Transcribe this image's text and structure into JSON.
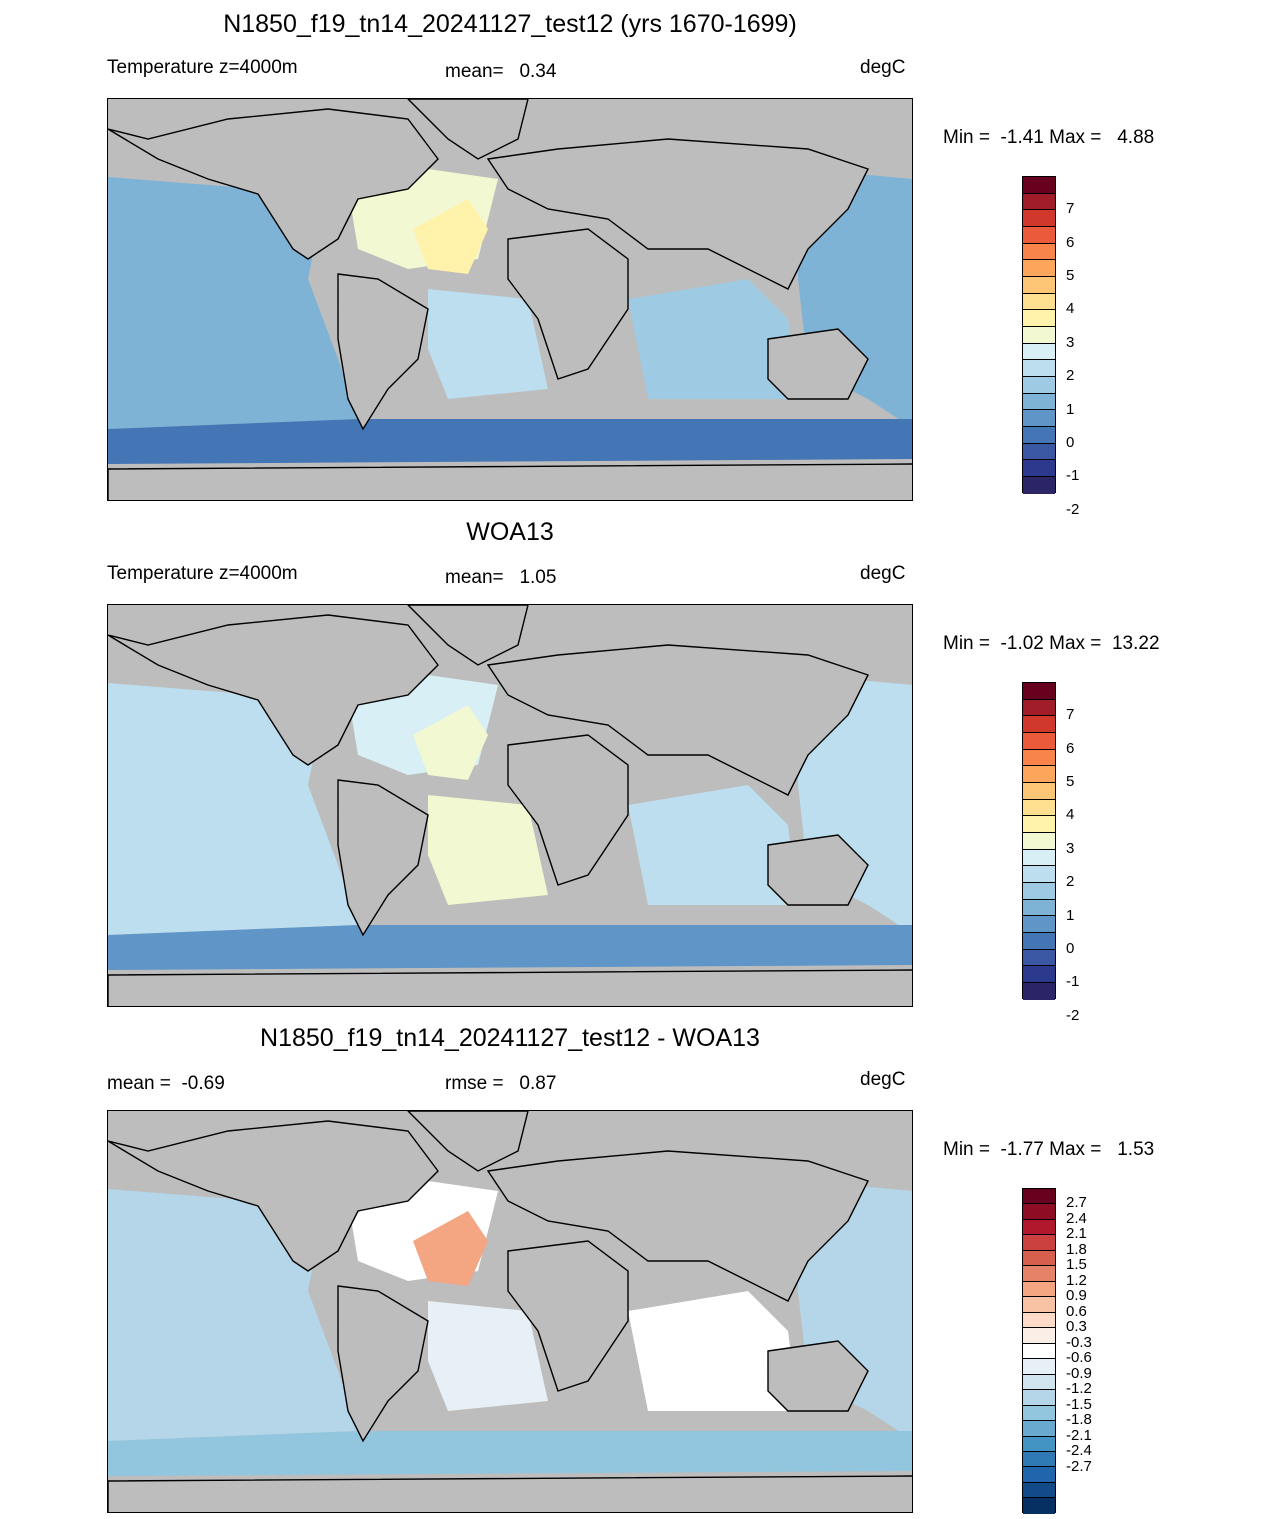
{
  "panels": [
    {
      "title": "N1850_f19_tn14_20241127_test12 (yrs 1670-1699)",
      "left_label": "Temperature z=4000m",
      "center_label": "mean=   0.34",
      "units": "degC",
      "minmax": "Min =  -1.41 Max =   4.88",
      "colorbar_ticks": [
        "7",
        "6",
        "5",
        "4",
        "3",
        "2",
        "1",
        "0",
        "-1",
        "-2"
      ],
      "colors": [
        "#67001f",
        "#a01c28",
        "#d1382c",
        "#ec5a3c",
        "#f8844c",
        "#fca65c",
        "#fdc676",
        "#fee090",
        "#fff3ab",
        "#f2f8d2",
        "#d8eff6",
        "#bcdeee",
        "#9ecbe3",
        "#7eb3d6",
        "#5f95c7",
        "#4475b4",
        "#3a57a4",
        "#2b3a8c",
        "#2b2566"
      ],
      "fills": {
        "pacific": "#7eb3d6",
        "atlantic": "#f2f8d2",
        "south": "#4475b4",
        "indian": "#9ecbe3",
        "south_atl": "#bcdeee",
        "north_atl_hot": "#fff3ab"
      }
    },
    {
      "title": "WOA13",
      "left_label": "Temperature z=4000m",
      "center_label": "mean=   1.05",
      "units": "degC",
      "minmax": "Min =  -1.02 Max =  13.22",
      "colorbar_ticks": [
        "7",
        "6",
        "5",
        "4",
        "3",
        "2",
        "1",
        "0",
        "-1",
        "-2"
      ],
      "colors": [
        "#67001f",
        "#a01c28",
        "#d1382c",
        "#ec5a3c",
        "#f8844c",
        "#fca65c",
        "#fdc676",
        "#fee090",
        "#fff3ab",
        "#f2f8d2",
        "#d8eff6",
        "#bcdeee",
        "#9ecbe3",
        "#7eb3d6",
        "#5f95c7",
        "#4475b4",
        "#3a57a4",
        "#2b3a8c",
        "#2b2566"
      ],
      "fills": {
        "pacific": "#bcdeee",
        "atlantic": "#d8eff6",
        "south": "#5f95c7",
        "indian": "#bcdeee",
        "south_atl": "#f2f8d2",
        "north_atl_hot": "#f2f8d2"
      }
    },
    {
      "title": "N1850_f19_tn14_20241127_test12 - WOA13",
      "left_label": "mean =  -0.69",
      "center_label": "rmse =   0.87",
      "units": "degC",
      "minmax": "Min =  -1.77 Max =   1.53",
      "colorbar_ticks": [
        "2.7",
        "2.4",
        "2.1",
        "1.8",
        "1.5",
        "1.2",
        "0.9",
        "0.6",
        "0.3",
        "-0.3",
        "-0.6",
        "-0.9",
        "-1.2",
        "-1.5",
        "-1.8",
        "-2.1",
        "-2.4",
        "-2.7"
      ],
      "colors": [
        "#67001f",
        "#8e0d25",
        "#b2182b",
        "#c9403f",
        "#d6604d",
        "#e58267",
        "#f4a582",
        "#f8c2a5",
        "#fddbc7",
        "#fbeee6",
        "#ffffff",
        "#e6f0f6",
        "#d1e5f0",
        "#b4d6e8",
        "#92c5de",
        "#6aa9cf",
        "#4393c3",
        "#2f79b5",
        "#2166ac",
        "#134b89",
        "#053061"
      ],
      "fills": {
        "pacific": "#b4d6e8",
        "atlantic": "#ffffff",
        "south": "#92c5de",
        "indian": "#ffffff",
        "south_atl": "#e6f0f6",
        "north_atl_hot": "#f4a582"
      }
    }
  ]
}
